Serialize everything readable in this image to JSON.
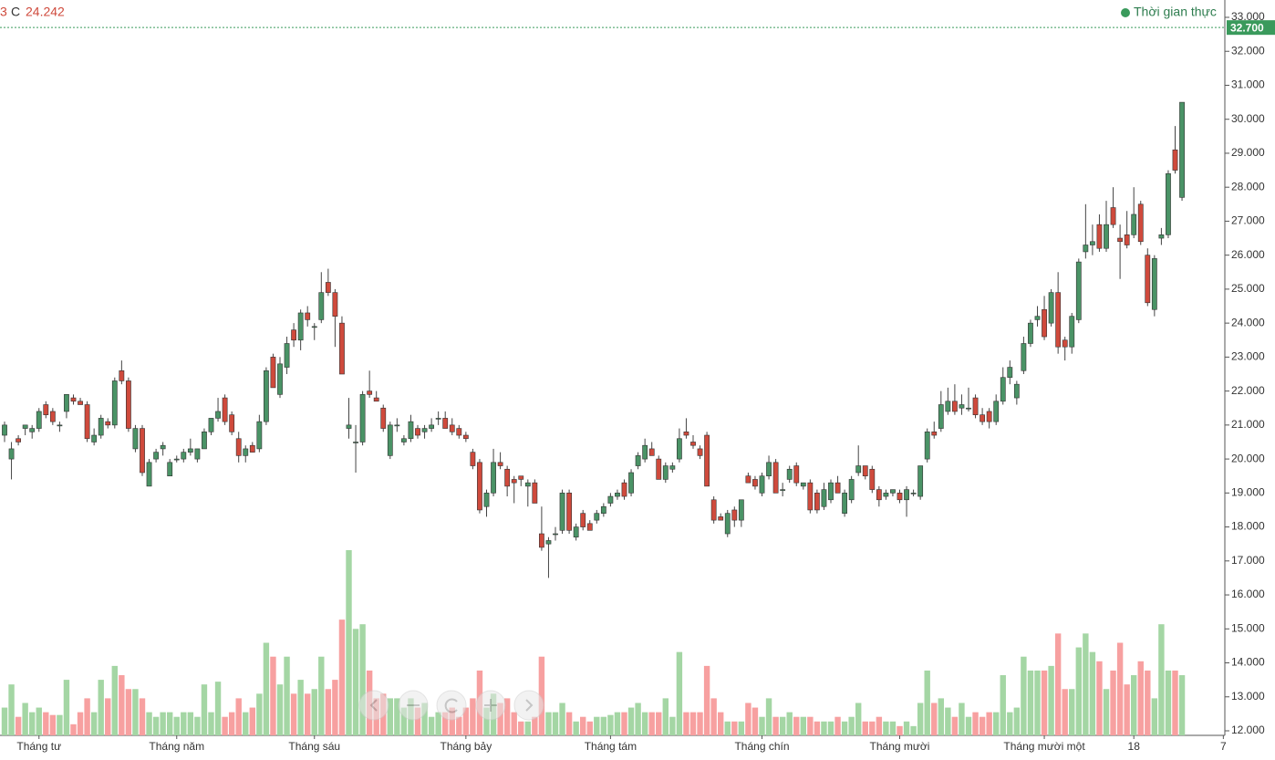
{
  "chart_data": {
    "type": "candlestick",
    "header": [
      "3",
      "C",
      "24.242"
    ],
    "realtime_label": "Thời gian thực",
    "up_color": "#4a9366",
    "down_color": "#cf4a3c",
    "volume_up_color": "#a4d6a4",
    "volume_down_color": "#f7a0a0",
    "ylim": [
      12000,
      33000
    ],
    "yticks": [
      {
        "value": 12000,
        "label": "12.000"
      },
      {
        "value": 13000,
        "label": "13.000"
      },
      {
        "value": 14000,
        "label": "14.000"
      },
      {
        "value": 15000,
        "label": "15.000"
      },
      {
        "value": 16000,
        "label": "16.000"
      },
      {
        "value": 17000,
        "label": "17.000"
      },
      {
        "value": 18000,
        "label": "18.000"
      },
      {
        "value": 19000,
        "label": "19.000"
      },
      {
        "value": 20000,
        "label": "20.000"
      },
      {
        "value": 21000,
        "label": "21.000"
      },
      {
        "value": 22000,
        "label": "22.000"
      },
      {
        "value": 23000,
        "label": "23.000"
      },
      {
        "value": 24000,
        "label": "24.000"
      },
      {
        "value": 25000,
        "label": "25.000"
      },
      {
        "value": 26000,
        "label": "26.000"
      },
      {
        "value": 27000,
        "label": "27.000"
      },
      {
        "value": 28000,
        "label": "28.000"
      },
      {
        "value": 29000,
        "label": "29.000"
      },
      {
        "value": 30000,
        "label": "30.000"
      },
      {
        "value": 31000,
        "label": "31.000"
      },
      {
        "value": 32000,
        "label": "32.000"
      },
      {
        "value": 33000,
        "label": "33.000"
      }
    ],
    "last_price": {
      "value": 32700,
      "label": "32.700"
    },
    "categories": [
      null,
      null,
      null,
      null,
      null,
      "Tháng tư",
      null,
      null,
      null,
      null,
      null,
      null,
      null,
      null,
      null,
      null,
      null,
      null,
      null,
      null,
      null,
      null,
      null,
      null,
      null,
      "Tháng năm",
      null,
      null,
      null,
      null,
      null,
      null,
      null,
      null,
      null,
      null,
      null,
      null,
      null,
      null,
      null,
      null,
      null,
      null,
      null,
      "Tháng sáu",
      null,
      null,
      null,
      null,
      null,
      null,
      null,
      null,
      null,
      null,
      null,
      null,
      null,
      null,
      null,
      null,
      null,
      null,
      null,
      null,
      null,
      "Tháng bảy",
      null,
      null,
      null,
      null,
      null,
      null,
      null,
      null,
      null,
      null,
      null,
      null,
      null,
      null,
      null,
      null,
      null,
      null,
      null,
      null,
      "Tháng tám",
      null,
      null,
      null,
      null,
      null,
      null,
      null,
      null,
      null,
      null,
      null,
      null,
      null,
      null,
      null,
      null,
      null,
      null,
      null,
      null,
      null,
      "Tháng chín",
      null,
      null,
      null,
      null,
      null,
      null,
      null,
      null,
      null,
      null,
      null,
      null,
      null,
      null,
      null,
      null,
      null,
      null,
      null,
      "Tháng mười",
      null,
      null,
      null,
      null,
      null,
      null,
      null,
      null,
      null,
      null,
      null,
      null,
      null,
      null,
      null,
      null,
      null,
      null,
      null,
      null,
      "Tháng mười một",
      null,
      null,
      null,
      null,
      null,
      null,
      null,
      null,
      null,
      null,
      null,
      null,
      "18",
      null,
      null,
      null,
      null,
      null,
      null,
      null,
      null,
      null,
      null,
      null,
      null,
      "7"
    ],
    "ohlc": [
      [
        20700,
        21100,
        20500,
        21000
      ],
      [
        20000,
        20500,
        19400,
        20300
      ],
      [
        20600,
        20700,
        20400,
        20500
      ],
      [
        20900,
        21000,
        20700,
        21000
      ],
      [
        20800,
        21000,
        20600,
        20900
      ],
      [
        20900,
        21500,
        20800,
        21400
      ],
      [
        21600,
        21700,
        21200,
        21300
      ],
      [
        21400,
        21500,
        21000,
        21100
      ],
      [
        21000,
        21100,
        20800,
        21000
      ],
      [
        21400,
        21900,
        21200,
        21900
      ],
      [
        21800,
        21900,
        21600,
        21700
      ],
      [
        21700,
        21800,
        21600,
        21600
      ],
      [
        21600,
        21700,
        20500,
        20600
      ],
      [
        20500,
        20900,
        20400,
        20700
      ],
      [
        20700,
        21300,
        20600,
        21200
      ],
      [
        21100,
        21200,
        20900,
        21000
      ],
      [
        21000,
        22400,
        20900,
        22300
      ],
      [
        22600,
        22900,
        22200,
        22300
      ],
      [
        22300,
        22400,
        20800,
        20900
      ],
      [
        20300,
        21000,
        20200,
        20900
      ],
      [
        20900,
        21000,
        19500,
        19600
      ],
      [
        19200,
        20000,
        19200,
        19900
      ],
      [
        20000,
        20300,
        19900,
        20200
      ],
      [
        20300,
        20500,
        20100,
        20400
      ],
      [
        19500,
        20000,
        19500,
        19900
      ],
      [
        20000,
        20100,
        19900,
        20000
      ],
      [
        20000,
        20300,
        19900,
        20200
      ],
      [
        20200,
        20600,
        20100,
        20300
      ],
      [
        20000,
        20300,
        19900,
        20300
      ],
      [
        20300,
        20900,
        20300,
        20800
      ],
      [
        20800,
        21200,
        20700,
        21200
      ],
      [
        21200,
        21800,
        21100,
        21400
      ],
      [
        21800,
        21900,
        21000,
        21100
      ],
      [
        21300,
        21400,
        20700,
        20800
      ],
      [
        20600,
        20800,
        19900,
        20100
      ],
      [
        20100,
        20400,
        19900,
        20300
      ],
      [
        20400,
        20500,
        20200,
        20200
      ],
      [
        20300,
        21300,
        20200,
        21100
      ],
      [
        21100,
        22700,
        21000,
        22600
      ],
      [
        23000,
        23100,
        22100,
        22100
      ],
      [
        21900,
        23000,
        21800,
        22800
      ],
      [
        22700,
        23600,
        22500,
        23400
      ],
      [
        23800,
        24000,
        23300,
        23500
      ],
      [
        23500,
        24400,
        23200,
        24300
      ],
      [
        24300,
        24500,
        23900,
        24100
      ],
      [
        23900,
        24000,
        23500,
        23900
      ],
      [
        24100,
        25500,
        24000,
        24900
      ],
      [
        25200,
        25600,
        24800,
        24900
      ],
      [
        24900,
        25000,
        23300,
        24200
      ],
      [
        24000,
        24200,
        22500,
        22500
      ],
      [
        20900,
        21800,
        20600,
        21000
      ],
      [
        20500,
        21000,
        19600,
        20500
      ],
      [
        20500,
        22000,
        20400,
        21900
      ],
      [
        22000,
        22600,
        21800,
        21900
      ],
      [
        21800,
        22000,
        21700,
        21700
      ],
      [
        21500,
        21600,
        20800,
        20900
      ],
      [
        20100,
        21100,
        20000,
        21000
      ],
      [
        21000,
        21200,
        20800,
        21000
      ],
      [
        20500,
        20700,
        20400,
        20600
      ],
      [
        20600,
        21300,
        20500,
        21100
      ],
      [
        20900,
        21000,
        20600,
        20700
      ],
      [
        20800,
        21000,
        20600,
        20900
      ],
      [
        20900,
        21200,
        20800,
        21000
      ],
      [
        21200,
        21400,
        21000,
        21200
      ],
      [
        21200,
        21400,
        20900,
        20900
      ],
      [
        21000,
        21200,
        20700,
        20800
      ],
      [
        20900,
        21000,
        20600,
        20700
      ],
      [
        20700,
        20800,
        20500,
        20600
      ],
      [
        20200,
        20300,
        19700,
        19800
      ],
      [
        19900,
        20000,
        18400,
        18500
      ],
      [
        18600,
        19100,
        18300,
        19000
      ],
      [
        19000,
        20300,
        18900,
        19900
      ],
      [
        19900,
        20200,
        19700,
        19800
      ],
      [
        19700,
        19800,
        18900,
        19200
      ],
      [
        19400,
        19500,
        18700,
        19300
      ],
      [
        19500,
        19500,
        19200,
        19400
      ],
      [
        19200,
        19400,
        18600,
        19300
      ],
      [
        19300,
        19400,
        18700,
        18700
      ],
      [
        17800,
        18600,
        17300,
        17400
      ],
      [
        17500,
        17700,
        16500,
        17600
      ],
      [
        17800,
        18000,
        17600,
        17800
      ],
      [
        17900,
        19100,
        17800,
        19000
      ],
      [
        19000,
        19100,
        17800,
        17900
      ],
      [
        17700,
        18100,
        17600,
        18000
      ],
      [
        18400,
        18500,
        17900,
        18000
      ],
      [
        18100,
        18200,
        17900,
        17900
      ],
      [
        18200,
        18500,
        18100,
        18400
      ],
      [
        18400,
        18700,
        18300,
        18600
      ],
      [
        18700,
        19000,
        18600,
        18900
      ],
      [
        18900,
        19100,
        18800,
        19000
      ],
      [
        19300,
        19400,
        18800,
        18900
      ],
      [
        19000,
        19700,
        18900,
        19600
      ],
      [
        19800,
        20200,
        19700,
        20100
      ],
      [
        20000,
        20600,
        19900,
        20400
      ],
      [
        20300,
        20500,
        20100,
        20100
      ],
      [
        20000,
        20100,
        19400,
        19400
      ],
      [
        19400,
        19900,
        19300,
        19800
      ],
      [
        19700,
        19900,
        19600,
        19800
      ],
      [
        20000,
        20900,
        19900,
        20600
      ],
      [
        20800,
        21200,
        20600,
        20700
      ],
      [
        20500,
        20700,
        20300,
        20400
      ],
      [
        20300,
        20400,
        20000,
        20100
      ],
      [
        20700,
        20800,
        19200,
        19200
      ],
      [
        18800,
        18900,
        18100,
        18200
      ],
      [
        18300,
        18400,
        18200,
        18200
      ],
      [
        17800,
        18500,
        17700,
        18400
      ],
      [
        18500,
        18600,
        18000,
        18200
      ],
      [
        18200,
        18800,
        18000,
        18800
      ],
      [
        19500,
        19600,
        19300,
        19300
      ],
      [
        19400,
        19500,
        19100,
        19200
      ],
      [
        19000,
        19600,
        18900,
        19500
      ],
      [
        19500,
        20100,
        19400,
        19900
      ],
      [
        19900,
        20000,
        19000,
        19000
      ],
      [
        19100,
        19300,
        18900,
        19100
      ],
      [
        19400,
        19800,
        19300,
        19700
      ],
      [
        19800,
        19900,
        19200,
        19300
      ],
      [
        19200,
        19300,
        19100,
        19300
      ],
      [
        19300,
        19400,
        18400,
        18500
      ],
      [
        19000,
        19100,
        18400,
        18500
      ],
      [
        18600,
        19300,
        18500,
        19100
      ],
      [
        18800,
        19400,
        18700,
        19300
      ],
      [
        19300,
        19500,
        19000,
        19000
      ],
      [
        18400,
        19100,
        18300,
        19000
      ],
      [
        18800,
        19500,
        18700,
        19400
      ],
      [
        19600,
        20400,
        19500,
        19800
      ],
      [
        19800,
        19800,
        19400,
        19500
      ],
      [
        19700,
        19800,
        19000,
        19100
      ],
      [
        19100,
        19200,
        18600,
        18800
      ],
      [
        18900,
        19100,
        18800,
        19000
      ],
      [
        19000,
        19100,
        18900,
        19100
      ],
      [
        19000,
        19100,
        18700,
        18800
      ],
      [
        18800,
        19200,
        18300,
        19100
      ],
      [
        19000,
        19100,
        18900,
        19000
      ],
      [
        18900,
        19800,
        18800,
        19800
      ],
      [
        20000,
        20900,
        19900,
        20800
      ],
      [
        20800,
        21100,
        20600,
        20700
      ],
      [
        20900,
        22000,
        20800,
        21600
      ],
      [
        21400,
        22100,
        21300,
        21700
      ],
      [
        21700,
        22200,
        21300,
        21400
      ],
      [
        21500,
        21900,
        21300,
        21600
      ],
      [
        21500,
        22100,
        21400,
        21500
      ],
      [
        21800,
        21900,
        21200,
        21300
      ],
      [
        21300,
        21500,
        21000,
        21100
      ],
      [
        21400,
        21500,
        20900,
        21100
      ],
      [
        21100,
        21900,
        21000,
        21700
      ],
      [
        21700,
        22700,
        21600,
        22400
      ],
      [
        22400,
        22900,
        22200,
        22700
      ],
      [
        21800,
        22300,
        21600,
        22200
      ],
      [
        22600,
        23600,
        22500,
        23400
      ],
      [
        23400,
        24100,
        23300,
        24000
      ],
      [
        24100,
        24500,
        23900,
        24200
      ],
      [
        24400,
        24800,
        23500,
        23600
      ],
      [
        24000,
        25000,
        23900,
        24900
      ],
      [
        24900,
        25500,
        23100,
        23300
      ],
      [
        23500,
        23600,
        22900,
        23300
      ],
      [
        23300,
        24300,
        23100,
        24200
      ],
      [
        24100,
        25900,
        24000,
        25800
      ],
      [
        26100,
        27500,
        25900,
        26300
      ],
      [
        26300,
        26900,
        26000,
        26400
      ],
      [
        26900,
        27200,
        26100,
        26200
      ],
      [
        26200,
        27600,
        26100,
        26900
      ],
      [
        27400,
        28000,
        26800,
        26900
      ],
      [
        26500,
        26900,
        25300,
        26400
      ],
      [
        26600,
        27300,
        26200,
        26300
      ],
      [
        26600,
        28000,
        26500,
        27200
      ],
      [
        27500,
        27600,
        26300,
        26400
      ],
      [
        26000,
        26200,
        24500,
        24600
      ],
      [
        24400,
        26000,
        24200,
        25900
      ],
      [
        26500,
        26800,
        26300,
        26600
      ],
      [
        26600,
        28500,
        26500,
        28400
      ],
      [
        29100,
        29800,
        28400,
        28500
      ],
      [
        27700,
        30500,
        27600,
        30500
      ],
      null,
      null,
      null,
      null,
      null,
      null
    ],
    "volume": [
      30,
      55,
      20,
      35,
      25,
      30,
      25,
      22,
      22,
      60,
      12,
      25,
      40,
      25,
      60,
      40,
      75,
      65,
      50,
      50,
      40,
      25,
      20,
      25,
      25,
      20,
      25,
      25,
      20,
      55,
      25,
      58,
      20,
      25,
      40,
      25,
      30,
      45,
      100,
      85,
      55,
      85,
      45,
      60,
      45,
      50,
      85,
      50,
      60,
      125,
      200,
      115,
      120,
      70,
      40,
      45,
      40,
      40,
      30,
      40,
      30,
      35,
      20,
      25,
      25,
      30,
      20,
      30,
      40,
      70,
      30,
      45,
      35,
      40,
      25,
      15,
      15,
      20,
      85,
      25,
      25,
      35,
      25,
      15,
      20,
      15,
      20,
      20,
      22,
      25,
      25,
      30,
      35,
      25,
      25,
      25,
      40,
      20,
      90,
      25,
      25,
      25,
      75,
      40,
      25,
      15,
      15,
      15,
      35,
      30,
      20,
      40,
      20,
      20,
      25,
      20,
      20,
      20,
      15,
      15,
      15,
      20,
      15,
      20,
      35,
      15,
      15,
      20,
      15,
      15,
      10,
      15,
      10,
      35,
      70,
      35,
      40,
      30,
      20,
      35,
      20,
      25,
      20,
      25,
      25,
      65,
      25,
      30,
      85,
      70,
      70,
      70,
      75,
      110,
      50,
      50,
      95,
      110,
      90,
      80,
      50,
      70,
      100,
      55,
      65,
      80,
      70,
      40,
      120,
      70,
      70,
      65,
      null,
      null,
      null,
      null,
      null,
      null
    ]
  }
}
